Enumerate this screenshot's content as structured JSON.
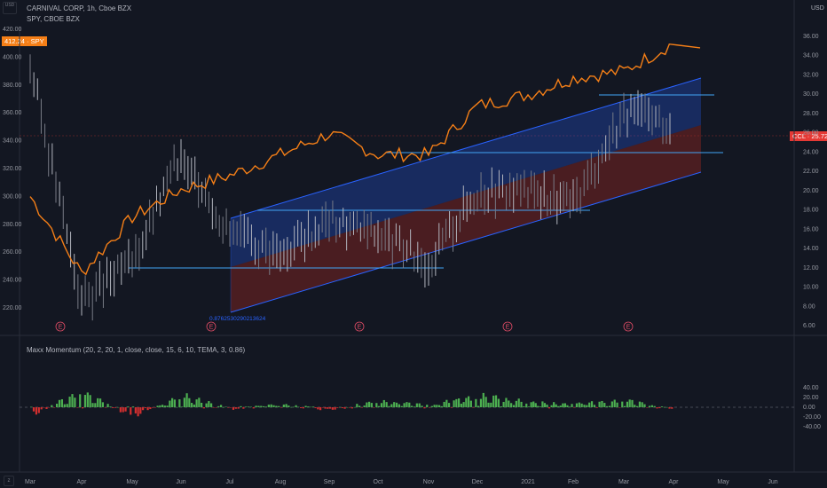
{
  "header": {
    "title": "CARNIVAL CORP, 1h, Cboe BZX",
    "subtitle": "SPY, CBOE BZX",
    "corner_label": "USD",
    "right_unit": "USD"
  },
  "tags": {
    "spy": "412.24 · SPY",
    "ccl": "CCL · 25.72"
  },
  "fib_label": "0.8762530290213624",
  "indicator_label": "Maxx Momentum (20, 2, 20, 1, close, close, 15, 6, 10, TEMA, 3, 0.86)",
  "colors": {
    "spy_line": "#f57f17",
    "ccl_bar": "#9598a1",
    "channel_blue": "#2962ff",
    "channel_red": "#b2271f",
    "sr_line": "#42a5f5",
    "pos_hist": "#4caf50",
    "neg_hist": "#d32f2f",
    "tag_orange": "#f57f17",
    "tag_red": "#e53935"
  },
  "chart_data": [
    {
      "type": "line",
      "name": "price",
      "left_ticks": [
        "420.00",
        "400.00",
        "380.00",
        "360.00",
        "340.00",
        "320.00",
        "300.00",
        "280.00",
        "260.00",
        "240.00",
        "220.00"
      ],
      "right_ticks": [
        "36.00",
        "34.00",
        "32.00",
        "30.00",
        "28.00",
        "26.00",
        "24.00",
        "22.00",
        "20.00",
        "18.00",
        "16.00",
        "14.00",
        "12.00",
        "10.00",
        "8.00",
        "6.00"
      ],
      "x_ticks": [
        "Mar",
        "Apr",
        "May",
        "Jun",
        "Jul",
        "Aug",
        "Sep",
        "Oct",
        "Nov",
        "Dec",
        "2021",
        "Feb",
        "Mar",
        "Apr",
        "May",
        "Jun"
      ],
      "series": [
        {
          "name": "SPY",
          "axis": "left",
          "last": 412.24,
          "x": [
            "Mar",
            "Apr",
            "May",
            "Jun",
            "Jul",
            "Aug",
            "Sep",
            "Oct",
            "Nov",
            "Dec",
            "2021",
            "Feb",
            "Mar",
            "Apr"
          ],
          "values": [
            300,
            245,
            285,
            305,
            315,
            330,
            345,
            330,
            330,
            365,
            373,
            385,
            390,
            410
          ]
        },
        {
          "name": "CCL",
          "axis": "right",
          "last": 25.72,
          "x": [
            "Mar",
            "Apr",
            "May",
            "Jun",
            "Jul",
            "Aug",
            "Sep",
            "Oct",
            "Nov",
            "Dec",
            "2021",
            "Feb",
            "Mar",
            "Apr"
          ],
          "values": [
            33,
            8.5,
            12.5,
            24,
            15.5,
            13.5,
            17,
            15.5,
            12.5,
            20,
            20,
            18.5,
            28,
            27
          ]
        }
      ],
      "earnings_marker": "E",
      "earnings_x": [
        "Mar",
        "Jun",
        "Sep",
        "Dec",
        "Mar"
      ],
      "horizontal_levels": [
        12.2,
        17.8,
        24.1,
        30.0
      ],
      "channel": {
        "x": [
          "Jul",
          "Apr"
        ],
        "upper": [
          17.3,
          31.5
        ],
        "mid": [
          12.0,
          26.5
        ],
        "lower": [
          7.7,
          22.0
        ]
      }
    },
    {
      "type": "bar",
      "name": "Maxx Momentum",
      "ticks": [
        "40.00",
        "20.00",
        "0.00",
        "-20.00",
        "-40.00"
      ],
      "x": [
        "Mar",
        "Apr",
        "May",
        "Jun",
        "Jul",
        "Aug",
        "Sep",
        "Oct",
        "Nov",
        "Dec",
        "2021",
        "Feb",
        "Mar",
        "Apr"
      ],
      "values": [
        -20,
        40,
        -25,
        30,
        -5,
        8,
        -8,
        15,
        5,
        30,
        12,
        8,
        18,
        -8
      ]
    }
  ]
}
